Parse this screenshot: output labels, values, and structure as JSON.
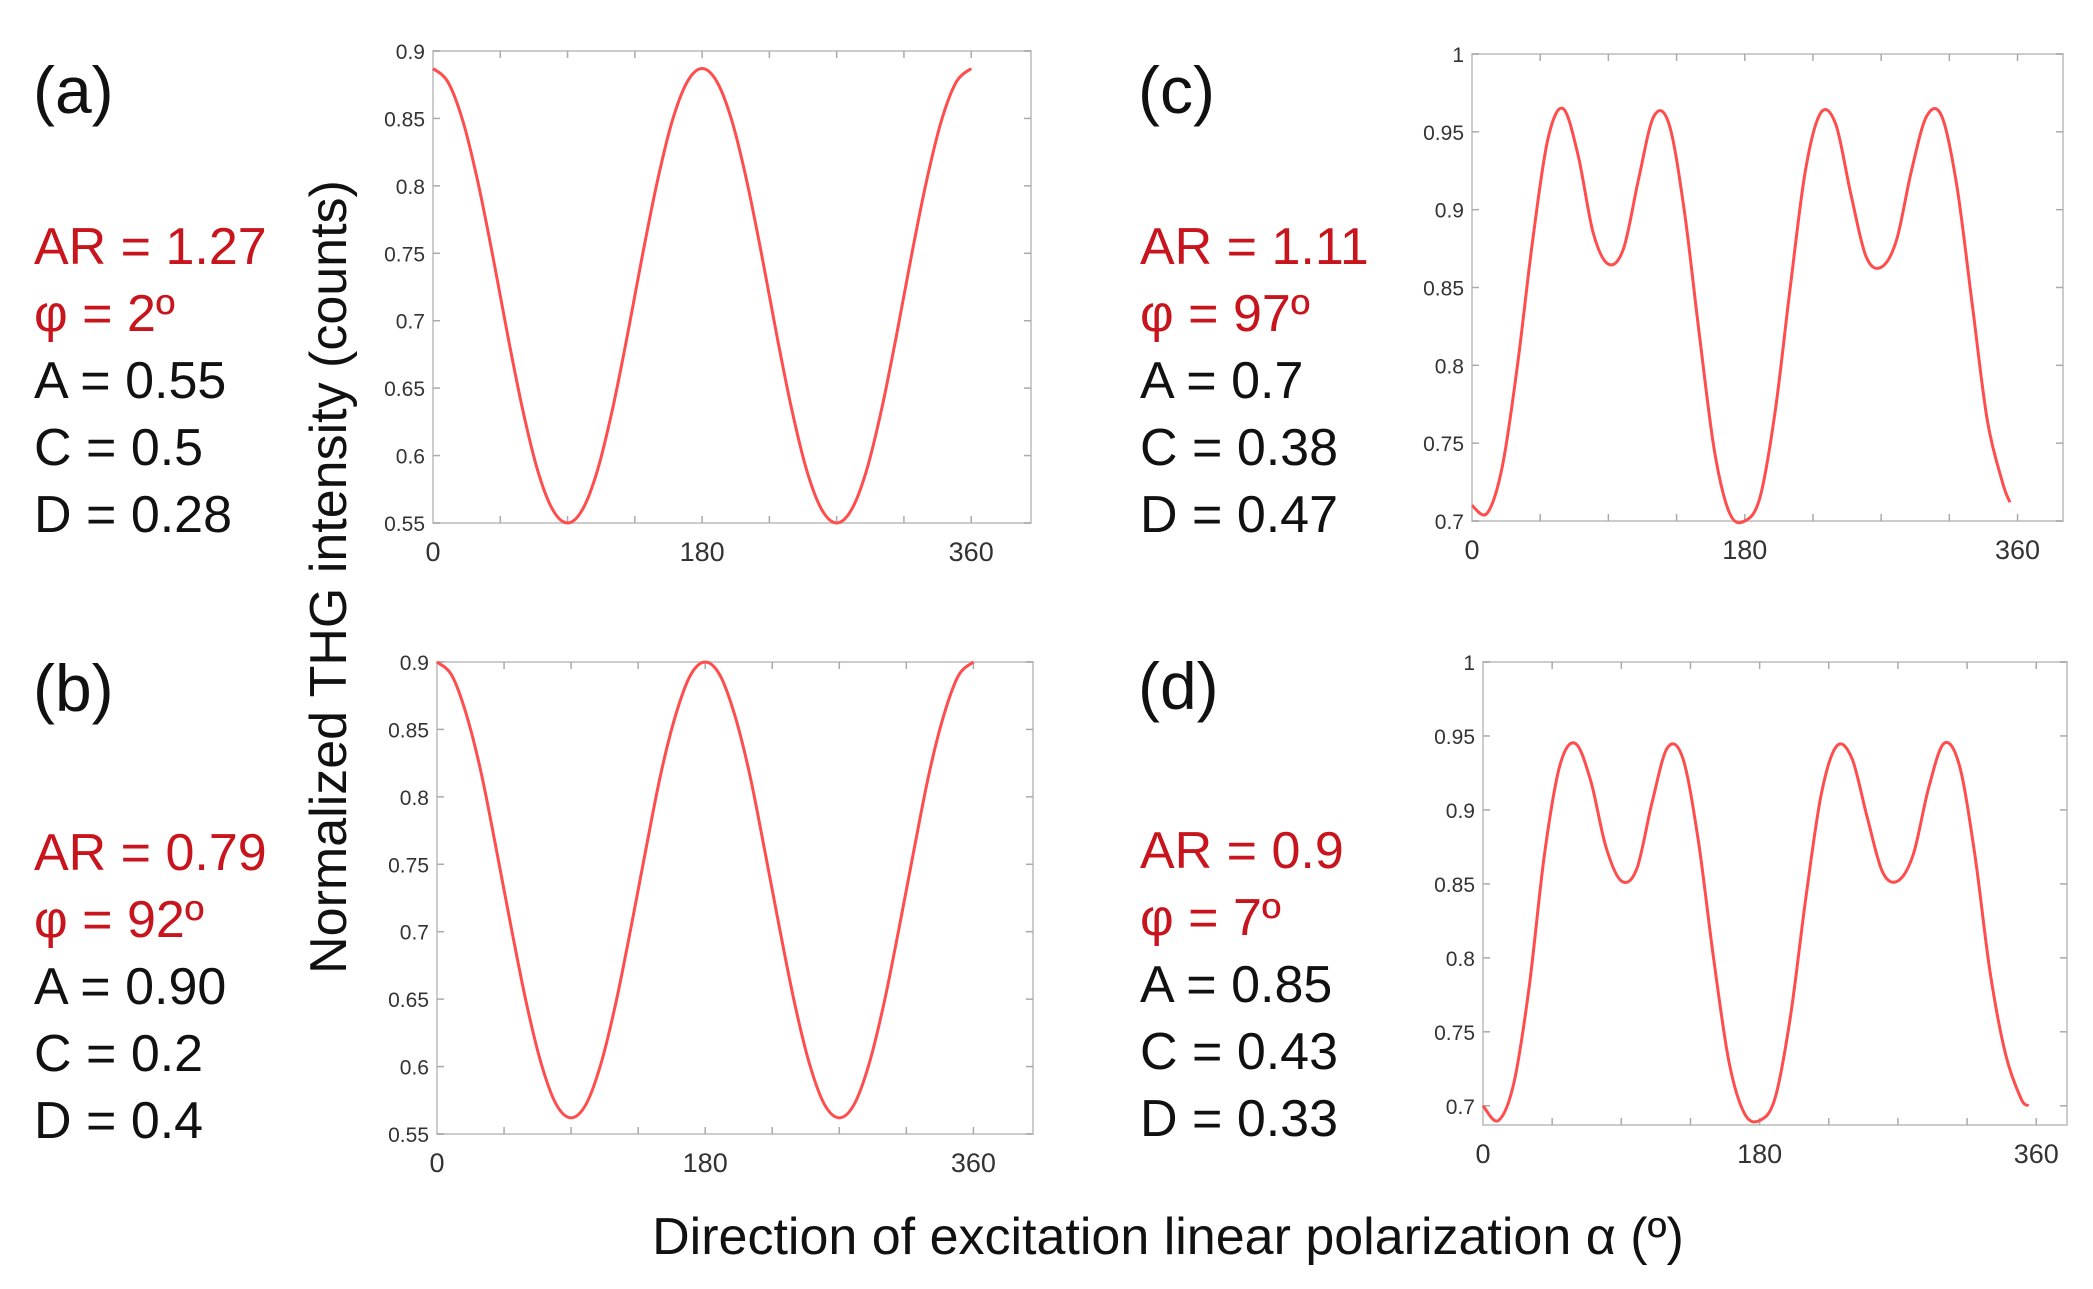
{
  "y_axis_label": "Normalized THG intensity (counts)",
  "x_axis_label": "Direction of excitation linear polarization α (º)",
  "colors": {
    "curve": "#ff4d4d",
    "highlight_text": "#c8141c",
    "frame": "#cccccc"
  },
  "panels": [
    {
      "label": "(a)",
      "params": [
        "AR = 1.27",
        "φ = 2º",
        "A = 0.55",
        "C = 0.5",
        "D = 0.28"
      ]
    },
    {
      "label": "(b)",
      "params": [
        "AR = 0.79",
        "φ = 92º",
        "A = 0.90",
        "C = 0.2",
        "D = 0.4"
      ]
    },
    {
      "label": "(c)",
      "params": [
        "AR = 1.11",
        "φ = 97º",
        "A = 0.7",
        "C = 0.38",
        "D = 0.47"
      ]
    },
    {
      "label": "(d)",
      "params": [
        "AR = 0.9",
        "φ = 7º",
        "A = 0.85",
        "C = 0.43",
        "D = 0.33"
      ]
    }
  ],
  "chart_data": [
    {
      "type": "line",
      "panel": "(a)",
      "xlim": [
        0,
        400
      ],
      "ylim": [
        0.55,
        0.9
      ],
      "xticks": [
        "0",
        "180",
        "360"
      ],
      "yticks": [
        "0.55",
        "0.6",
        "0.65",
        "0.7",
        "0.75",
        "0.8",
        "0.85",
        "0.9"
      ],
      "x": [
        0,
        10,
        20,
        30,
        40,
        50,
        60,
        70,
        80,
        90,
        100,
        110,
        120,
        130,
        140,
        150,
        160,
        170,
        180,
        190,
        200,
        210,
        220,
        230,
        240,
        250,
        260,
        270,
        280,
        290,
        300,
        310,
        320,
        330,
        340,
        350,
        360
      ],
      "y": [
        0.887,
        0.877,
        0.848,
        0.803,
        0.748,
        0.689,
        0.634,
        0.589,
        0.56,
        0.55,
        0.56,
        0.589,
        0.634,
        0.689,
        0.748,
        0.803,
        0.848,
        0.877,
        0.887,
        0.877,
        0.848,
        0.803,
        0.748,
        0.689,
        0.634,
        0.589,
        0.56,
        0.55,
        0.56,
        0.589,
        0.634,
        0.689,
        0.748,
        0.803,
        0.848,
        0.877,
        0.887
      ]
    },
    {
      "type": "line",
      "panel": "(b)",
      "xlim": [
        0,
        400
      ],
      "ylim": [
        0.55,
        0.9
      ],
      "xticks": [
        "0",
        "180",
        "360"
      ],
      "yticks": [
        "0.55",
        "0.6",
        "0.65",
        "0.7",
        "0.75",
        "0.8",
        "0.85",
        "0.9"
      ],
      "x": [
        0,
        10,
        20,
        30,
        40,
        50,
        60,
        70,
        80,
        90,
        100,
        110,
        120,
        130,
        140,
        150,
        160,
        170,
        180,
        190,
        200,
        210,
        220,
        230,
        240,
        250,
        260,
        270,
        280,
        290,
        300,
        310,
        320,
        330,
        340,
        350,
        360
      ],
      "y": [
        0.9,
        0.89,
        0.86,
        0.816,
        0.76,
        0.702,
        0.647,
        0.602,
        0.572,
        0.562,
        0.572,
        0.602,
        0.647,
        0.702,
        0.76,
        0.816,
        0.86,
        0.89,
        0.9,
        0.89,
        0.86,
        0.816,
        0.76,
        0.702,
        0.647,
        0.602,
        0.572,
        0.562,
        0.572,
        0.602,
        0.647,
        0.702,
        0.76,
        0.816,
        0.86,
        0.89,
        0.9
      ]
    },
    {
      "type": "line",
      "panel": "(c)",
      "xlim": [
        0,
        390
      ],
      "ylim": [
        0.7,
        1
      ],
      "xticks": [
        "0",
        "180",
        "360"
      ],
      "yticks": [
        "0.7",
        "0.75",
        "0.8",
        "0.85",
        "0.9",
        "0.95",
        "1"
      ],
      "x": [
        0,
        10,
        20,
        30,
        40,
        50,
        60,
        70,
        80,
        90,
        100,
        110,
        120,
        130,
        140,
        150,
        160,
        170,
        180,
        190,
        200,
        210,
        220,
        230,
        240,
        250,
        260,
        270,
        280,
        290,
        300,
        310,
        320,
        330,
        340,
        350,
        355
      ],
      "y": [
        0.71,
        0.705,
        0.735,
        0.8,
        0.88,
        0.945,
        0.965,
        0.935,
        0.885,
        0.865,
        0.875,
        0.92,
        0.96,
        0.955,
        0.9,
        0.82,
        0.745,
        0.705,
        0.7,
        0.715,
        0.77,
        0.85,
        0.925,
        0.962,
        0.955,
        0.91,
        0.87,
        0.863,
        0.88,
        0.925,
        0.96,
        0.96,
        0.915,
        0.84,
        0.765,
        0.725,
        0.712
      ]
    },
    {
      "type": "line",
      "panel": "(d)",
      "xlim": [
        0,
        380
      ],
      "ylim": [
        0.687,
        1
      ],
      "xticks": [
        "0",
        "180",
        "360"
      ],
      "yticks": [
        "0.7",
        "0.75",
        "0.8",
        "0.85",
        "0.9",
        "0.95",
        "1"
      ],
      "x": [
        0,
        10,
        20,
        30,
        40,
        50,
        60,
        70,
        80,
        90,
        100,
        110,
        120,
        130,
        140,
        150,
        160,
        170,
        180,
        190,
        200,
        210,
        220,
        230,
        240,
        250,
        260,
        270,
        280,
        290,
        300,
        310,
        320,
        330,
        340,
        350,
        355
      ],
      "y": [
        0.7,
        0.69,
        0.715,
        0.78,
        0.87,
        0.93,
        0.945,
        0.92,
        0.875,
        0.852,
        0.86,
        0.905,
        0.942,
        0.935,
        0.88,
        0.8,
        0.73,
        0.695,
        0.69,
        0.705,
        0.76,
        0.84,
        0.91,
        0.943,
        0.935,
        0.895,
        0.858,
        0.852,
        0.87,
        0.915,
        0.945,
        0.93,
        0.87,
        0.79,
        0.735,
        0.705,
        0.7
      ]
    }
  ]
}
